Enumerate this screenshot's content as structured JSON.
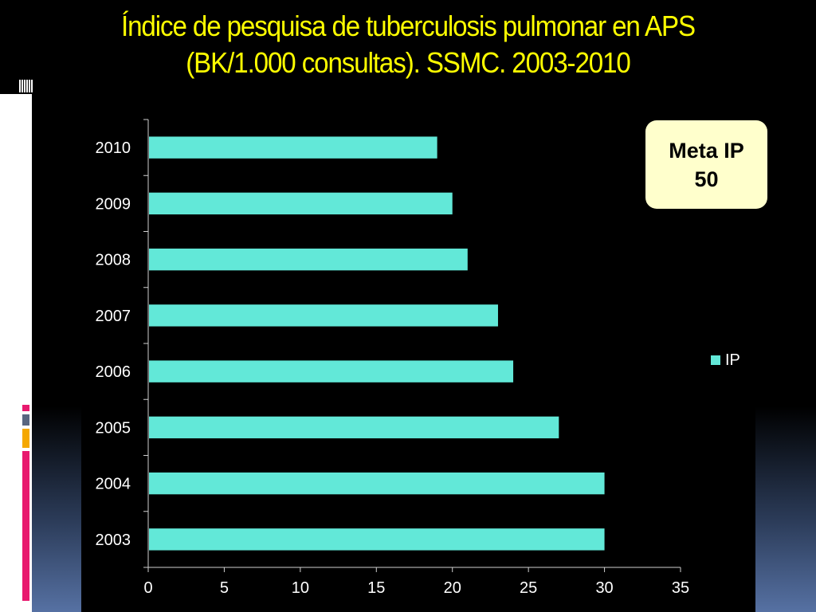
{
  "slide": {
    "title_line1": "Índice de pesquisa de tuberculosis pulmonar en APS",
    "title_line2": "(BK/1.000 consultas). SSMC. 2003-2010",
    "callout_line1": "Meta IP",
    "callout_line2": "50"
  },
  "colors": {
    "title": "#ffff00",
    "bar": "#62e8d8",
    "background": "#000000",
    "callout_bg": "#ffffcc"
  },
  "chart_data": {
    "type": "bar",
    "orientation": "horizontal",
    "title": "",
    "xlabel": "",
    "ylabel": "",
    "categories": [
      "2010",
      "2009",
      "2008",
      "2007",
      "2006",
      "2005",
      "2004",
      "2003"
    ],
    "series": [
      {
        "name": "IP",
        "values": [
          19,
          20,
          21,
          23,
          24,
          27,
          30,
          30
        ]
      }
    ],
    "xlim": [
      0,
      35
    ],
    "xticks": [
      "0",
      "5",
      "10",
      "15",
      "20",
      "25",
      "30",
      "35"
    ],
    "grid": false,
    "legend": "right"
  }
}
